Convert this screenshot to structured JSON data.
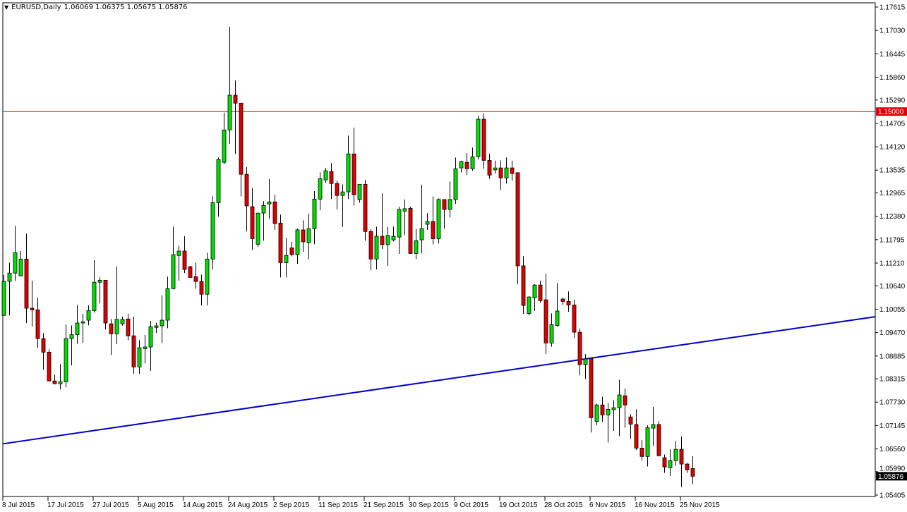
{
  "header": {
    "menu_icon": "triangle-down-icon",
    "symbol": "EURUSD,Daily",
    "ohlc": "1.06069 1.06375 1.05675 1.05876"
  },
  "colors": {
    "bull": "#00e000",
    "bear": "#e00000",
    "wick": "#000000",
    "hline": "#e00000",
    "trendline": "#0000cc",
    "current_price_bg": "#000000"
  },
  "chart_data": {
    "type": "candlestick",
    "symbol": "EURUSD",
    "timeframe": "Daily",
    "ylim": [
      1.05405,
      1.17615
    ],
    "grid": false,
    "y_ticks": [
      "1.17615",
      "1.17030",
      "1.16445",
      "1.15860",
      "1.15290",
      "1.14705",
      "1.14120",
      "1.13535",
      "1.12965",
      "1.12380",
      "1.11795",
      "1.11210",
      "1.10640",
      "1.10055",
      "1.09470",
      "1.08885",
      "1.08315",
      "1.07730",
      "1.07145",
      "1.06560",
      "1.05990",
      "1.05405"
    ],
    "x_labels": [
      "8 Jul 2015",
      "17 Jul 2015",
      "27 Jul 2015",
      "5 Aug 2015",
      "14 Aug 2015",
      "24 Aug 2015",
      "2 Sep 2015",
      "11 Sep 2015",
      "21 Sep 2015",
      "30 Sep 2015",
      "9 Oct 2015",
      "19 Oct 2015",
      "28 Oct 2015",
      "6 Nov 2015",
      "16 Nov 2015",
      "25 Nov 2015"
    ],
    "x_label_bar_interval": 8,
    "horizontal_line": {
      "price": 1.15,
      "label": "1.15000"
    },
    "current_price": {
      "price": 1.05876,
      "label": "1.05876"
    },
    "trendline": [
      {
        "bar": 0,
        "price": 1.0669
      },
      {
        "bar": 154,
        "price": 1.0986
      }
    ],
    "ohlc": [
      [
        1.099,
        1.1091,
        1.099,
        1.1075
      ],
      [
        1.1075,
        1.1122,
        1.099,
        1.1096
      ],
      [
        1.1096,
        1.1214,
        1.1077,
        1.1147
      ],
      [
        1.1089,
        1.1151,
        1.1089,
        1.1131
      ],
      [
        1.1131,
        1.1195,
        1.0971,
        1.1008
      ],
      [
        1.1008,
        1.1077,
        1.0962,
        1.1004
      ],
      [
        1.1004,
        1.1034,
        1.0909,
        1.0932
      ],
      [
        1.0932,
        1.0946,
        1.0854,
        1.0898
      ],
      [
        1.0898,
        1.0905,
        1.0826,
        1.0826
      ],
      [
        1.0826,
        1.0842,
        1.0819,
        1.0819
      ],
      [
        1.0819,
        1.0868,
        1.0805,
        1.0824
      ],
      [
        1.0824,
        1.0967,
        1.081,
        1.0932
      ],
      [
        1.0932,
        1.0965,
        1.0865,
        1.0942
      ],
      [
        1.0942,
        1.1016,
        1.0919,
        1.0971
      ],
      [
        1.0971,
        1.0994,
        1.0921,
        1.0974
      ],
      [
        1.0978,
        1.1015,
        1.0965,
        1.1002
      ],
      [
        1.1002,
        1.1128,
        1.0997,
        1.1073
      ],
      [
        1.1073,
        1.1085,
        1.102,
        1.1078
      ],
      [
        1.1078,
        1.1078,
        1.0955,
        1.0971
      ],
      [
        1.0969,
        1.0981,
        1.0891,
        1.0944
      ],
      [
        1.0944,
        1.1112,
        1.0918,
        1.098
      ],
      [
        1.0969,
        1.0987,
        1.0964,
        1.098
      ],
      [
        1.0981,
        1.0994,
        1.0928,
        1.0939
      ],
      [
        1.0939,
        1.0987,
        1.0844,
        1.0861
      ],
      [
        1.0861,
        1.0928,
        1.0844,
        1.0909
      ],
      [
        1.0907,
        1.0941,
        1.087,
        1.0911
      ],
      [
        1.0911,
        1.0976,
        1.0851,
        1.0962
      ],
      [
        1.096,
        1.0972,
        1.0946,
        1.0964
      ],
      [
        1.0964,
        1.104,
        1.0921,
        1.0978
      ],
      [
        1.0978,
        1.1087,
        1.0958,
        1.1057
      ],
      [
        1.1057,
        1.1212,
        1.1055,
        1.1142
      ],
      [
        1.114,
        1.1165,
        1.1077,
        1.1151
      ],
      [
        1.1151,
        1.1188,
        1.1096,
        1.1105
      ],
      [
        1.1112,
        1.1114,
        1.1085,
        1.1085
      ],
      [
        1.1087,
        1.1122,
        1.1057,
        1.1075
      ],
      [
        1.1075,
        1.1092,
        1.1015,
        1.1043
      ],
      [
        1.1043,
        1.1147,
        1.1015,
        1.1131
      ],
      [
        1.1131,
        1.1288,
        1.1105,
        1.1272
      ],
      [
        1.1272,
        1.1385,
        1.1237,
        1.138
      ],
      [
        1.1373,
        1.1497,
        1.1368,
        1.1454
      ],
      [
        1.1454,
        1.1712,
        1.1419,
        1.1541
      ],
      [
        1.1541,
        1.1578,
        1.1394,
        1.1521
      ],
      [
        1.1521,
        1.1521,
        1.1288,
        1.1343
      ],
      [
        1.1343,
        1.1361,
        1.12,
        1.1264
      ],
      [
        1.1262,
        1.1308,
        1.1154,
        1.1182
      ],
      [
        1.1168,
        1.1246,
        1.1161,
        1.1246
      ],
      [
        1.1246,
        1.1276,
        1.1177,
        1.1265
      ],
      [
        1.1269,
        1.1331,
        1.1232,
        1.1274
      ],
      [
        1.1274,
        1.1292,
        1.1204,
        1.122
      ],
      [
        1.1221,
        1.1242,
        1.1085,
        1.1122
      ],
      [
        1.1122,
        1.1184,
        1.1085,
        1.114
      ],
      [
        1.1159,
        1.1174,
        1.1138,
        1.1142
      ],
      [
        1.1142,
        1.1207,
        1.1119,
        1.1204
      ],
      [
        1.1204,
        1.1228,
        1.1149,
        1.1174
      ],
      [
        1.1172,
        1.1244,
        1.113,
        1.1207
      ],
      [
        1.1207,
        1.1301,
        1.1168,
        1.1281
      ],
      [
        1.1281,
        1.1348,
        1.1253,
        1.1332
      ],
      [
        1.1329,
        1.1359,
        1.1322,
        1.1352
      ],
      [
        1.135,
        1.1371,
        1.1281,
        1.132
      ],
      [
        1.132,
        1.1327,
        1.1255,
        1.129
      ],
      [
        1.129,
        1.1318,
        1.1211,
        1.1299
      ],
      [
        1.1299,
        1.144,
        1.1281,
        1.1394
      ],
      [
        1.1394,
        1.146,
        1.1265,
        1.1292
      ],
      [
        1.128,
        1.1318,
        1.1272,
        1.1318
      ],
      [
        1.1318,
        1.1329,
        1.1177,
        1.12
      ],
      [
        1.12,
        1.1205,
        1.1103,
        1.1131
      ],
      [
        1.1131,
        1.1212,
        1.1105,
        1.1188
      ],
      [
        1.1188,
        1.1295,
        1.1156,
        1.1167
      ],
      [
        1.1167,
        1.1211,
        1.1114,
        1.119
      ],
      [
        1.1179,
        1.1212,
        1.1175,
        1.1188
      ],
      [
        1.1186,
        1.1262,
        1.1144,
        1.1255
      ],
      [
        1.1251,
        1.128,
        1.1191,
        1.1257
      ],
      [
        1.1258,
        1.1262,
        1.1144,
        1.1145
      ],
      [
        1.1145,
        1.1207,
        1.1131,
        1.1177
      ],
      [
        1.1179,
        1.1317,
        1.1145,
        1.1207
      ],
      [
        1.1218,
        1.1246,
        1.1204,
        1.1225
      ],
      [
        1.1225,
        1.1288,
        1.1168,
        1.1182
      ],
      [
        1.1182,
        1.1283,
        1.117,
        1.128
      ],
      [
        1.128,
        1.128,
        1.1207,
        1.1255
      ],
      [
        1.1255,
        1.1325,
        1.1235,
        1.128
      ],
      [
        1.128,
        1.1385,
        1.1269,
        1.1357
      ],
      [
        1.1359,
        1.1377,
        1.1348,
        1.1375
      ],
      [
        1.1373,
        1.1396,
        1.1341,
        1.1357
      ],
      [
        1.1357,
        1.141,
        1.1352,
        1.1387
      ],
      [
        1.1387,
        1.149,
        1.138,
        1.1481
      ],
      [
        1.1481,
        1.1495,
        1.1357,
        1.1378
      ],
      [
        1.1378,
        1.1394,
        1.1332,
        1.1341
      ],
      [
        1.1354,
        1.1377,
        1.1345,
        1.1359
      ],
      [
        1.1359,
        1.1378,
        1.1304,
        1.1334
      ],
      [
        1.1334,
        1.1385,
        1.132,
        1.1359
      ],
      [
        1.1359,
        1.1377,
        1.1327,
        1.1345
      ],
      [
        1.1347,
        1.1348,
        1.1068,
        1.1114
      ],
      [
        1.1114,
        1.1138,
        1.0994,
        1.1015
      ],
      [
        1.0995,
        1.1038,
        1.099,
        1.1036
      ],
      [
        1.1034,
        1.1068,
        1.1001,
        1.1066
      ],
      [
        1.1066,
        1.1077,
        1.1022,
        1.1027
      ],
      [
        1.1029,
        1.1094,
        1.0893,
        1.0921
      ],
      [
        1.0921,
        1.0995,
        1.0912,
        1.0967
      ],
      [
        1.0965,
        1.1071,
        1.0962,
        1.1001
      ],
      [
        1.1031,
        1.1034,
        1.1016,
        1.1025
      ],
      [
        1.1025,
        1.105,
        1.0999,
        1.1016
      ],
      [
        1.1016,
        1.1029,
        1.0934,
        1.0948
      ],
      [
        1.0948,
        1.0957,
        1.084,
        1.0867
      ],
      [
        1.0867,
        1.0893,
        1.0831,
        1.0881
      ],
      [
        1.0882,
        1.0882,
        1.0697,
        1.0734
      ],
      [
        1.0725,
        1.0769,
        1.0715,
        1.0766
      ],
      [
        1.0766,
        1.0787,
        1.0724,
        1.0741
      ],
      [
        1.0741,
        1.0771,
        1.0672,
        1.0755
      ],
      [
        1.0754,
        1.0778,
        1.0701,
        1.0759
      ],
      [
        1.0759,
        1.0829,
        1.0688,
        1.0791
      ],
      [
        1.0789,
        1.0807,
        1.0709,
        1.0766
      ],
      [
        1.0736,
        1.0743,
        1.0681,
        1.0718
      ],
      [
        1.0717,
        1.0755,
        1.0653,
        1.0658
      ],
      [
        1.0658,
        1.0678,
        1.0627,
        1.0637
      ],
      [
        1.0637,
        1.0715,
        1.0612,
        1.0709
      ],
      [
        1.0708,
        1.0761,
        1.0664,
        1.0717
      ],
      [
        1.0717,
        1.0725,
        1.0637,
        1.0639
      ],
      [
        1.0634,
        1.0642,
        1.0596,
        1.0611
      ],
      [
        1.0609,
        1.0655,
        1.0588,
        1.0627
      ],
      [
        1.0627,
        1.0676,
        1.0614,
        1.0655
      ],
      [
        1.0655,
        1.0687,
        1.0561,
        1.0618
      ],
      [
        1.0618,
        1.0621,
        1.0596,
        1.0604
      ],
      [
        1.06069,
        1.06375,
        1.05675,
        1.05876
      ]
    ]
  }
}
